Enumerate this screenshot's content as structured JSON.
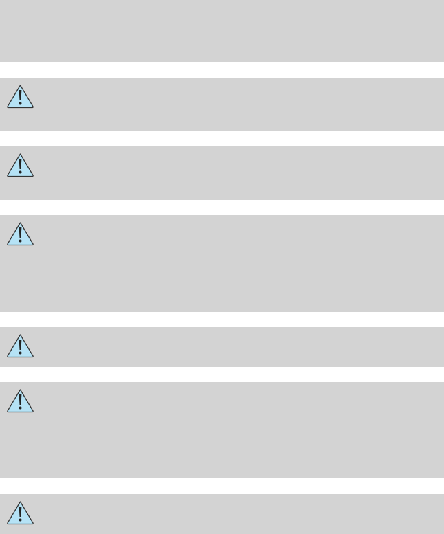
{
  "colors": {
    "panel": "#d3d3d3",
    "warning_fill": "#b5e2f5",
    "warning_stroke": "#333333"
  },
  "boxes": [
    {
      "icon": null
    },
    {
      "icon": "warning-icon"
    },
    {
      "icon": "warning-icon"
    },
    {
      "icon": "warning-icon"
    },
    {
      "icon": "warning-icon"
    },
    {
      "icon": "warning-icon"
    },
    {
      "icon": "warning-icon"
    }
  ]
}
